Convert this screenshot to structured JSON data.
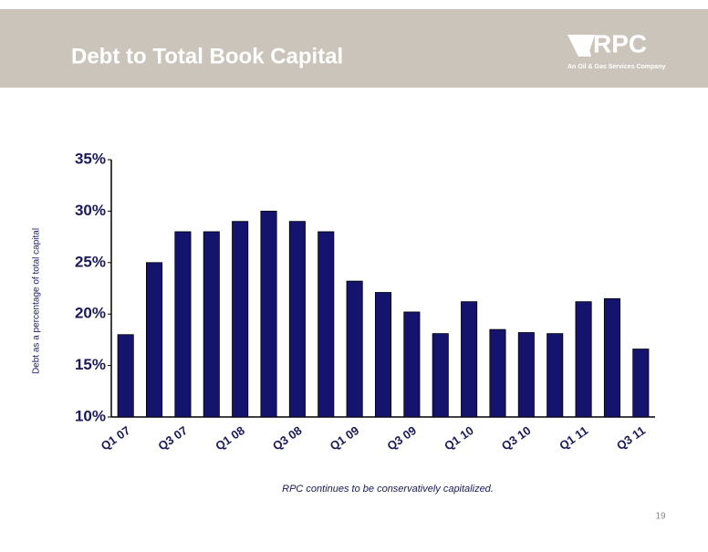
{
  "header": {
    "title": "Debt to Total Book Capital",
    "logo_name": "RPC",
    "logo_tagline": "An Oil & Gas Services Company"
  },
  "chart_data": {
    "type": "bar",
    "y_axis_label": "Debt as a percentage of total capital",
    "categories": [
      "Q1 07",
      null,
      "Q3 07",
      null,
      "Q1 08",
      null,
      "Q3 08",
      null,
      "Q1 09",
      null,
      "Q3 09",
      null,
      "Q1 10",
      null,
      "Q3 10",
      null,
      "Q1 11",
      null,
      "Q3 11"
    ],
    "values": [
      18,
      25,
      28,
      28,
      29,
      30,
      29,
      28,
      23.2,
      22.1,
      20.2,
      18.1,
      21.2,
      18.5,
      18.2,
      18.1,
      21.2,
      21.5,
      16.6
    ],
    "color": "#14146e",
    "ylim": [
      10,
      35
    ],
    "yticks": [
      {
        "value": 10,
        "label": "10%"
      },
      {
        "value": 15,
        "label": "15%"
      },
      {
        "value": 20,
        "label": "20%"
      },
      {
        "value": 25,
        "label": "25%"
      },
      {
        "value": 30,
        "label": "30%"
      },
      {
        "value": 35,
        "label": "35%"
      }
    ],
    "grid": false
  },
  "caption": "RPC continues to be conservatively capitalized.",
  "page_number": "19"
}
